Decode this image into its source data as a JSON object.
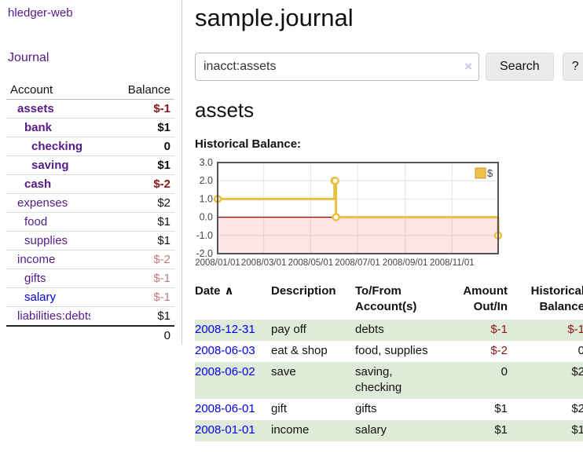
{
  "app": {
    "title": "hledger-web"
  },
  "colors": {
    "link_purple": "#551a8b",
    "link_blue": "#0000ee",
    "negative_strong": "#8b1717",
    "negative_soft": "#c07c7c",
    "row_green": "#deebd8",
    "chart_line": "#e9c044",
    "chart_zero_line": "#8b0000",
    "chart_negative_fill": "rgba(255,0,0,0.10)"
  },
  "sidebar": {
    "journal_link": "Journal",
    "table": {
      "headers": [
        "Account",
        "Balance"
      ],
      "accounts": [
        {
          "name": "assets",
          "balance": "$-1",
          "indent": 1,
          "bold": true,
          "balance_class": "neg-strong"
        },
        {
          "name": "bank",
          "balance": "$1",
          "indent": 2,
          "bold": true,
          "balance_class": ""
        },
        {
          "name": "checking",
          "balance": "0",
          "indent": 3,
          "bold": true,
          "balance_class": ""
        },
        {
          "name": "saving",
          "balance": "$1",
          "indent": 3,
          "bold": true,
          "balance_class": ""
        },
        {
          "name": "cash",
          "balance": "$-2",
          "indent": 2,
          "bold": true,
          "balance_class": "neg-strong"
        },
        {
          "name": "expenses",
          "balance": "$2",
          "indent": 1,
          "bold": false,
          "balance_class": ""
        },
        {
          "name": "food",
          "balance": "$1",
          "indent": 2,
          "bold": false,
          "balance_class": ""
        },
        {
          "name": "supplies",
          "balance": "$1",
          "indent": 2,
          "bold": false,
          "balance_class": ""
        },
        {
          "name": "income",
          "balance": "$-2",
          "indent": 1,
          "bold": false,
          "balance_class": "neg-soft"
        },
        {
          "name": "gifts",
          "balance": "$-1",
          "indent": 2,
          "bold": false,
          "balance_class": "neg-soft"
        },
        {
          "name": "salary",
          "balance": "$-1",
          "indent": 2,
          "bold": false,
          "balance_class": "neg-soft",
          "link_color": "blue"
        },
        {
          "name": "liabilities:debts",
          "balance": "$1",
          "indent": 1,
          "bold": false,
          "balance_class": ""
        }
      ],
      "total": "0"
    }
  },
  "header": {
    "title": "sample.journal"
  },
  "search": {
    "value": "inacct:assets",
    "clear_icon": "×",
    "button": "Search",
    "help_button": "?"
  },
  "account_page": {
    "heading": "assets",
    "chart_label": "Historical Balance:"
  },
  "chart_data": {
    "type": "line",
    "style": "step",
    "title": "Historical Balance:",
    "series": [
      {
        "name": "$",
        "color": "#e9c044",
        "points": [
          [
            "2008-01-01",
            1
          ],
          [
            "2008-06-01",
            2
          ],
          [
            "2008-06-02",
            2
          ],
          [
            "2008-06-03",
            0
          ],
          [
            "2008-12-31",
            -1
          ]
        ]
      }
    ],
    "x_domain": [
      "2008-01-01",
      "2008-12-31"
    ],
    "x_ticks": [
      {
        "date": "2008-01-01",
        "label": "2008/01/01"
      },
      {
        "date": "2008-03-01",
        "label": "2008/03/01"
      },
      {
        "date": "2008-05-01",
        "label": "2008/05/01"
      },
      {
        "date": "2008-07-01",
        "label": "2008/07/01"
      },
      {
        "date": "2008-09-01",
        "label": "2008/09/01"
      },
      {
        "date": "2008-11-01",
        "label": "2008/11/01"
      }
    ],
    "ylim": [
      -2,
      3
    ],
    "y_ticks": [
      "3.0",
      "2.0",
      "1.0",
      "0.0",
      "-1.0",
      "-2.0"
    ],
    "grid": true,
    "legend": {
      "position": "top-right",
      "label": "$"
    },
    "negative_region_shaded": true
  },
  "register_table": {
    "headers": [
      {
        "label": "Date",
        "sort_icon": "∧",
        "class": "col-date al"
      },
      {
        "label": "Description",
        "class": "col-desc al"
      },
      {
        "label": "To/From Account(s)",
        "class": "col-acct al"
      },
      {
        "label": "Amount Out/In",
        "class": "col-amt ar"
      },
      {
        "label": "Historical Balance",
        "class": "col-bal ar"
      }
    ],
    "rows": [
      {
        "date": "2008-12-31",
        "description": "pay off",
        "accounts": "debts",
        "amount": "$-1",
        "amount_neg": true,
        "balance": "$-1",
        "balance_neg": true
      },
      {
        "date": "2008-06-03",
        "description": "eat & shop",
        "accounts": "food, supplies",
        "amount": "$-2",
        "amount_neg": true,
        "balance": "0",
        "balance_neg": false
      },
      {
        "date": "2008-06-02",
        "description": "save",
        "accounts": "saving, checking",
        "amount": "0",
        "amount_neg": false,
        "balance": "$2",
        "balance_neg": false
      },
      {
        "date": "2008-06-01",
        "description": "gift",
        "accounts": "gifts",
        "amount": "$1",
        "amount_neg": false,
        "balance": "$2",
        "balance_neg": false
      },
      {
        "date": "2008-01-01",
        "description": "income",
        "accounts": "salary",
        "amount": "$1",
        "amount_neg": false,
        "balance": "$1",
        "balance_neg": false
      }
    ]
  }
}
